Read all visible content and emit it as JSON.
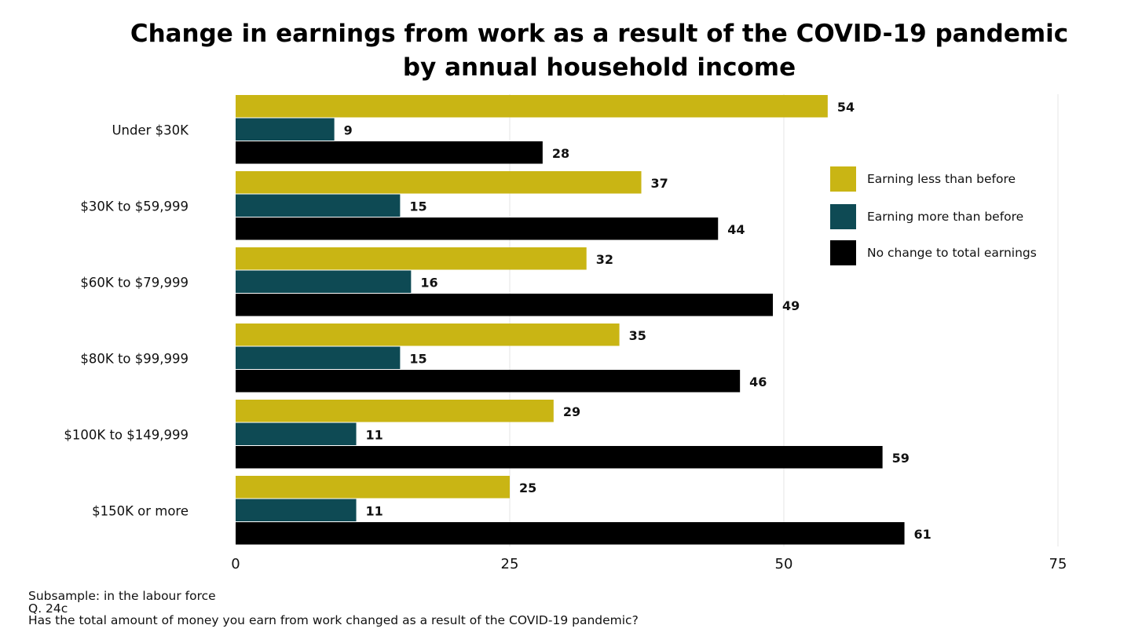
{
  "title": {
    "line1": "Change in earnings from work as a result of the COVID-19 pandemic",
    "line2": "by annual household income"
  },
  "footnotes": {
    "subsample": "Subsample: in the labour force",
    "question_id": "Q. 24c",
    "question": "Has the total amount of money you earn from work changed as a result of the COVID-19 pandemic?"
  },
  "colors": {
    "earning_less": "#C9B514",
    "earning_more": "#0E4A54",
    "no_change": "#000000",
    "grid": "#E6E6E6"
  },
  "chart_data": {
    "type": "bar",
    "orientation": "horizontal",
    "categories": [
      "Under $30K",
      "$30K to $59,999",
      "$60K to $79,999",
      "$80K to $99,999",
      "$100K to $149,999",
      "$150K or more"
    ],
    "series": [
      {
        "name": "Earning less than before",
        "color": "#C9B514",
        "values": [
          54,
          37,
          32,
          35,
          29,
          25
        ]
      },
      {
        "name": "Earning more than before",
        "color": "#0E4A54",
        "values": [
          9,
          15,
          16,
          15,
          11,
          11
        ]
      },
      {
        "name": "No change to total earnings",
        "color": "#000000",
        "values": [
          28,
          44,
          49,
          46,
          59,
          61
        ]
      }
    ],
    "xlim": [
      0,
      75
    ],
    "xticks": [
      0,
      25,
      50,
      75
    ],
    "grid": true,
    "legend_position": "right",
    "data_labels": true
  }
}
